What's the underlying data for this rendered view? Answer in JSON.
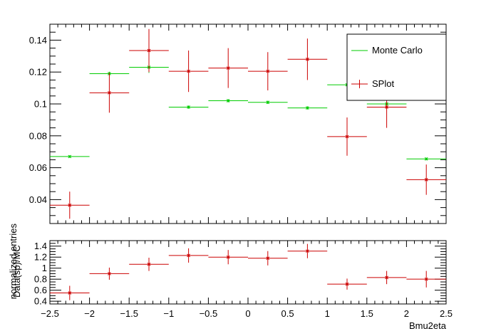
{
  "chart_data": [
    {
      "type": "scatter",
      "ylabel": "normalized entries",
      "xlim": [
        -2.5,
        2.5
      ],
      "ylim": [
        0.025,
        0.15
      ],
      "yticks": [
        "0.04",
        "0.06",
        "0.08",
        "0.1",
        "0.12",
        "0.14"
      ],
      "legend": {
        "placement": "top-right",
        "entries": [
          "Monte Carlo",
          "SPlot"
        ]
      },
      "series": [
        {
          "name": "Monte Carlo",
          "color": "#00cc00",
          "x": [
            -2.25,
            -1.75,
            -1.25,
            -0.75,
            -0.25,
            0.25,
            0.75,
            1.25,
            1.75,
            2.25
          ],
          "values": [
            0.067,
            0.119,
            0.123,
            0.098,
            0.102,
            0.101,
            0.0975,
            0.112,
            0.1,
            0.0655
          ],
          "xerr": 0.25,
          "yerr": [
            0.0008,
            0.0012,
            0.0035,
            0.001,
            0.001,
            0.001,
            0.001,
            0.0012,
            0.001,
            0.0008
          ]
        },
        {
          "name": "SPlot",
          "color": "#cc0000",
          "x": [
            -2.25,
            -1.75,
            -1.25,
            -0.75,
            -0.25,
            0.25,
            0.75,
            1.25,
            1.75,
            2.25
          ],
          "values": [
            0.0365,
            0.107,
            0.1335,
            0.1205,
            0.1225,
            0.1205,
            0.128,
            0.0795,
            0.098,
            0.0525
          ],
          "xerr": 0.25,
          "yerr": [
            0.0085,
            0.0125,
            0.0135,
            0.013,
            0.0125,
            0.012,
            0.013,
            0.012,
            0.013,
            0.0095
          ]
        }
      ]
    },
    {
      "type": "scatter",
      "xlabel": "Bmu2eta",
      "ylabel": "Data(sp)/MC",
      "xlim": [
        -2.5,
        2.5
      ],
      "ylim": [
        0.35,
        1.5
      ],
      "xticks": [
        "-2.5",
        "-2",
        "-1.5",
        "-1",
        "-0.5",
        "0",
        "0.5",
        "1",
        "1.5",
        "2",
        "2.5"
      ],
      "yticks": [
        "0.4",
        "0.6",
        "0.8",
        "1",
        "1.2",
        "1.4"
      ],
      "series": [
        {
          "name": "",
          "color": "#cc0000",
          "x": [
            -2.25,
            -1.75,
            -1.25,
            -0.75,
            -0.25,
            0.25,
            0.75,
            1.25,
            1.75,
            2.25
          ],
          "values": [
            0.55,
            0.9,
            1.07,
            1.23,
            1.2,
            1.18,
            1.31,
            0.71,
            0.83,
            0.8
          ],
          "xerr": 0.25,
          "yerr": [
            0.13,
            0.11,
            0.12,
            0.13,
            0.13,
            0.13,
            0.13,
            0.1,
            0.12,
            0.15
          ]
        }
      ]
    }
  ]
}
